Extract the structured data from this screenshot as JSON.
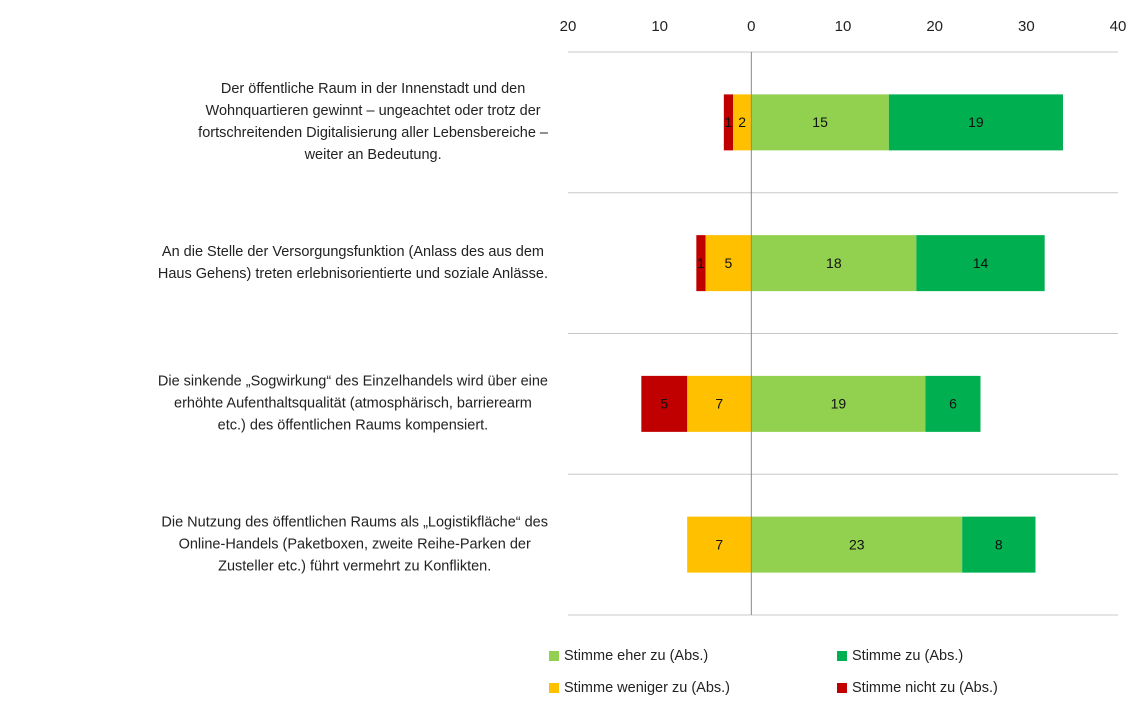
{
  "chart_data": {
    "type": "diverging_bar",
    "categories": [
      [
        "Der öffentliche Raum in der Innenstadt und den",
        "Wohnquartieren gewinnt – ungeachtet oder trotz der",
        "fortschreitenden Digitalisierung aller Lebensbereiche –",
        "weiter an Bedeutung."
      ],
      [
        "An die Stelle der Versorgungsfunktion (Anlass des aus dem",
        "Haus Gehens) treten erlebnisorientierte und soziale Anlässe."
      ],
      [
        "Die sinkende „Sogwirkung“ des Einzelhandels wird über eine",
        "erhöhte Aufenthaltsqualität (atmosphärisch, barrierearm",
        "etc.) des öffentlichen Raums kompensiert."
      ],
      [
        "Die Nutzung des öffentlichen Raums als „Logistikfläche“ des",
        "Online-Handels (Paketboxen, zweite Reihe-Parken der",
        "Zusteller etc.) führt vermehrt zu Konflikten."
      ]
    ],
    "series": [
      {
        "name": "Stimme eher zu (Abs.)",
        "color": "#92d050",
        "values": [
          15,
          18,
          19,
          23
        ]
      },
      {
        "name": "Stimme zu (Abs.)",
        "color": "#00b050",
        "values": [
          19,
          14,
          6,
          8
        ]
      },
      {
        "name": "Stimme weniger zu (Abs.)",
        "color": "#ffc000",
        "values": [
          -2,
          -5,
          -7,
          -7
        ],
        "value_labels": [
          "2",
          "5",
          "7",
          "7"
        ]
      },
      {
        "name": "Stimme nicht zu (Abs.)",
        "color": "#c00000",
        "values": [
          -1,
          -1,
          -5,
          null
        ],
        "value_labels": [
          "1",
          "1",
          "5",
          null
        ]
      }
    ],
    "xlim": [
      -20,
      40
    ],
    "xticks": [
      {
        "value": -20,
        "label": "20"
      },
      {
        "value": -10,
        "label": "10"
      },
      0,
      10,
      20,
      30,
      40
    ]
  }
}
